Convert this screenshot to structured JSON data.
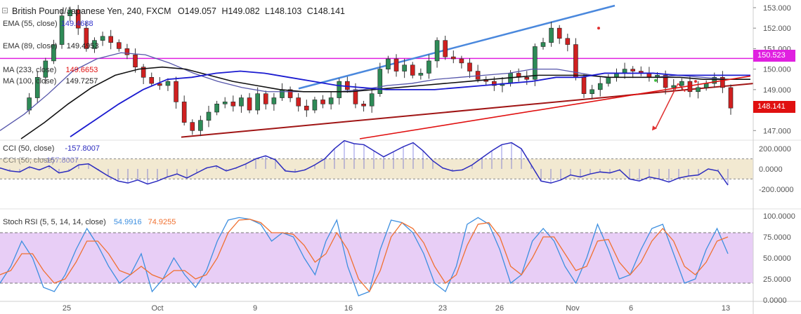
{
  "header": {
    "symbol": "British Pound/Japanese Yen, 240, FXCM",
    "open_label": "O",
    "open": "149.057",
    "high_label": "H",
    "high": "149.082",
    "low_label": "L",
    "low": "148.103",
    "close_label": "C",
    "close": "148.141"
  },
  "legend": {
    "ema55": {
      "label": "EMA (55, close)",
      "value": "149.4688",
      "color": "#3333cc"
    },
    "ema89": {
      "label": "EMA (89, close)",
      "value": "149.4953",
      "color": "#222222"
    },
    "ma233": {
      "label": "MA (233, close)",
      "value": "149.6653",
      "color": "#e01010"
    },
    "ma100": {
      "label": "MA (100, close)",
      "value": "149.7257",
      "color": "#222222"
    }
  },
  "cci": {
    "label_top": "CCI (50, close)",
    "value_top": "-157.8007",
    "label_bottom": "CCI (50, close)",
    "value_bottom": "-157.8007",
    "color": "#2b2bbf"
  },
  "stoch": {
    "label": "Stoch RSI (5, 5, 14, 14, close)",
    "k_value": "54.9916",
    "d_value": "74.9255",
    "k_color": "#3d8fe0",
    "d_color": "#f07030"
  },
  "price_tags": {
    "resistance": {
      "value": "150.523",
      "color": "#e020e0"
    },
    "last": {
      "value": "148.141",
      "color": "#e01010"
    }
  },
  "chart_data": [
    {
      "type": "candlestick",
      "title": "British Pound/Japanese Yen, 240, FXCM",
      "x_ticks": [
        "25",
        "Oct",
        "9",
        "16",
        "23",
        "26",
        "Nov",
        "6",
        "13"
      ],
      "y_ticks": [
        "153.000",
        "152.000",
        "151.000",
        "150.000",
        "149.000",
        "148.000",
        "147.000"
      ],
      "ylim": [
        146.6,
        153.1
      ],
      "horizontal_level": 150.523,
      "close_path": [
        148.0,
        148.6,
        149.6,
        150.4,
        151.2,
        152.6,
        152.9,
        152.0,
        151.0,
        151.4,
        151.6,
        151.3,
        151.0,
        150.7,
        150.1,
        149.6,
        149.3,
        149.2,
        149.4,
        148.4,
        147.4,
        147.0,
        147.5,
        147.9,
        148.3,
        148.4,
        148.2,
        148.6,
        148.0,
        148.8,
        148.3,
        148.6,
        149.0,
        148.6,
        148.2,
        148.0,
        148.5,
        148.3,
        148.6,
        149.4,
        149.0,
        148.3,
        148.2,
        148.8,
        150.0,
        150.5,
        149.9,
        150.2,
        149.7,
        149.8,
        150.4,
        151.4,
        150.6,
        150.5,
        150.3,
        149.9,
        149.5,
        149.4,
        149.2,
        149.3,
        149.8,
        149.6,
        149.5,
        151.1,
        151.3,
        152.0,
        151.5,
        151.2,
        149.6,
        148.8,
        149.0,
        149.3,
        149.6,
        149.8,
        150.0,
        149.9,
        149.8,
        149.6,
        149.7,
        149.1,
        149.2,
        149.4,
        148.9,
        149.1,
        149.3,
        149.6,
        149.1,
        148.1
      ],
      "ema55": [
        147.0,
        147.8,
        148.8,
        149.9,
        150.5,
        150.8,
        150.7,
        150.3,
        149.8,
        149.4,
        149.1,
        148.9,
        148.9,
        148.9,
        148.9,
        149.0,
        149.2,
        149.3,
        149.5,
        149.6,
        149.7,
        149.8,
        150.0,
        150.0,
        149.8,
        149.6,
        149.6,
        149.6,
        149.7,
        149.6,
        149.5,
        149.5
      ],
      "ema89": [
        146.6,
        147.4,
        148.3,
        149.1,
        149.7,
        150.0,
        150.1,
        150.0,
        149.7,
        149.4,
        149.2,
        149.0,
        148.9,
        148.9,
        148.9,
        149.0,
        149.1,
        149.2,
        149.3,
        149.4,
        149.5,
        149.6,
        149.7,
        149.7,
        149.7,
        149.6,
        149.6,
        149.6,
        149.6,
        149.5,
        149.5,
        149.5
      ],
      "ma100": [
        146.7,
        147.5,
        148.3,
        149.0,
        149.5,
        149.6,
        149.8,
        149.9,
        149.8,
        149.6,
        149.4,
        149.2,
        149.1,
        149.0,
        149.0,
        149.0,
        149.1,
        149.2,
        149.3,
        149.4,
        149.6,
        149.6,
        149.8,
        149.8,
        149.8,
        149.7,
        149.7,
        149.7,
        149.7
      ],
      "ma233_start": 146.6,
      "ma233_end": 149.66
    },
    {
      "type": "line",
      "title": "CCI (50, close)",
      "y_ticks": [
        "200.0000",
        "0.0000",
        "-200.0000"
      ],
      "ylim": [
        -250,
        250
      ],
      "band": [
        -100,
        100
      ],
      "values": [
        10,
        -20,
        -30,
        20,
        -10,
        30,
        -40,
        -20,
        40,
        50,
        -10,
        -70,
        -120,
        -140,
        -110,
        -150,
        -120,
        -80,
        -50,
        -90,
        -40,
        10,
        30,
        -20,
        10,
        50,
        100,
        130,
        90,
        -20,
        -30,
        -10,
        40,
        100,
        200,
        280,
        250,
        240,
        180,
        120,
        170,
        220,
        260,
        180,
        80,
        10,
        -20,
        -10,
        40,
        110,
        180,
        240,
        260,
        200,
        40,
        -120,
        -140,
        -110,
        -60,
        -80,
        -50,
        -30,
        -40,
        -10,
        -100,
        -120,
        -80,
        -100,
        -130,
        -90,
        -70,
        -60,
        0,
        -20,
        -160
      ]
    },
    {
      "type": "line",
      "title": "Stoch RSI (5, 5, 14, 14, close)",
      "y_ticks": [
        "100.0000",
        "75.0000",
        "50.0000",
        "25.0000",
        "0.0000"
      ],
      "ylim": [
        0,
        105
      ],
      "band": [
        20,
        80
      ],
      "series": [
        {
          "name": "K",
          "values": [
            20,
            40,
            70,
            50,
            15,
            10,
            30,
            60,
            85,
            65,
            40,
            20,
            30,
            55,
            10,
            25,
            50,
            30,
            15,
            35,
            70,
            95,
            98,
            96,
            90,
            70,
            80,
            75,
            50,
            30,
            70,
            95,
            40,
            5,
            10,
            60,
            95,
            92,
            80,
            55,
            20,
            10,
            40,
            90,
            98,
            90,
            60,
            20,
            30,
            70,
            85,
            70,
            40,
            20,
            50,
            90,
            60,
            25,
            30,
            60,
            85,
            90,
            55,
            20,
            25,
            60,
            85,
            55
          ]
        },
        {
          "name": "D",
          "values": [
            30,
            35,
            55,
            55,
            35,
            20,
            25,
            45,
            70,
            70,
            55,
            35,
            30,
            40,
            30,
            25,
            35,
            35,
            25,
            30,
            50,
            80,
            95,
            96,
            92,
            80,
            80,
            78,
            65,
            45,
            55,
            80,
            60,
            25,
            10,
            35,
            75,
            92,
            85,
            68,
            40,
            20,
            30,
            65,
            90,
            92,
            75,
            40,
            30,
            50,
            75,
            75,
            55,
            35,
            40,
            70,
            72,
            45,
            30,
            45,
            70,
            85,
            70,
            40,
            30,
            45,
            70,
            75
          ]
        }
      ]
    }
  ]
}
